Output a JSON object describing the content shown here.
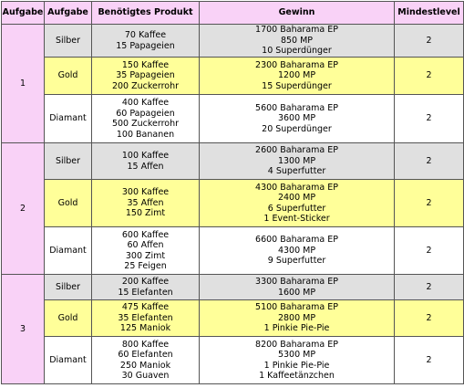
{
  "header": [
    "Aufgabe",
    "Aufgabe",
    "Benötigtes Produkt",
    "Gewinn",
    "Mindestlevel"
  ],
  "groups": [
    {
      "number": "1",
      "rows": [
        {
          "tier": "Silber",
          "products": [
            "70 Kaffee",
            "15 Papageien"
          ],
          "rewards": [
            "1700 Baharama EP",
            "850 MP",
            "10 Superdünger"
          ],
          "level": "2"
        },
        {
          "tier": "Gold",
          "products": [
            "150 Kaffee",
            "35 Papageien",
            "200 Zuckerrohr"
          ],
          "rewards": [
            "2300 Baharama EP",
            "1200 MP",
            "15 Superdünger"
          ],
          "level": "2"
        },
        {
          "tier": "Diamant",
          "products": [
            "400 Kaffee",
            "60 Papageien",
            "500 Zuckerrohr",
            "100 Bananen"
          ],
          "rewards": [
            "5600 Baharama EP",
            "3600 MP",
            "20 Superdünger"
          ],
          "level": "2"
        }
      ]
    },
    {
      "number": "2",
      "rows": [
        {
          "tier": "Silber",
          "products": [
            "100 Kaffee",
            "15 Affen"
          ],
          "rewards": [
            "2600 Baharama EP",
            "1300 MP",
            "4 Superfutter"
          ],
          "level": "2"
        },
        {
          "tier": "Gold",
          "products": [
            "300 Kaffee",
            "35 Affen",
            "150 Zimt"
          ],
          "rewards": [
            "4300 Baharama EP",
            "2400 MP",
            "6 Superfutter",
            "1 Event-Sticker"
          ],
          "level": "2"
        },
        {
          "tier": "Diamant",
          "products": [
            "600 Kaffee",
            "60 Affen",
            "300 Zimt",
            "25 Feigen"
          ],
          "rewards": [
            "6600 Baharama EP",
            "4300 MP",
            "9 Superfutter"
          ],
          "level": "2"
        }
      ]
    },
    {
      "number": "3",
      "rows": [
        {
          "tier": "Silber",
          "products": [
            "200 Kaffee",
            "15 Elefanten"
          ],
          "rewards": [
            "3300 Baharama EP",
            "1600 MP"
          ],
          "level": "2"
        },
        {
          "tier": "Gold",
          "products": [
            "475 Kaffee",
            "35 Elefanten",
            "125 Maniok"
          ],
          "rewards": [
            "5100 Baharama EP",
            "2800 MP",
            "1 Pinkie Pie-Pie"
          ],
          "level": "2"
        },
        {
          "tier": "Diamant",
          "products": [
            "800 Kaffee",
            "60 Elefanten",
            "250 Maniok",
            "30 Guaven"
          ],
          "rewards": [
            "8200 Baharama EP",
            "5300 MP",
            "1 Pinkie Pie-Pie",
            "1 Kaffeetänzchen"
          ],
          "level": "2"
        }
      ]
    }
  ]
}
